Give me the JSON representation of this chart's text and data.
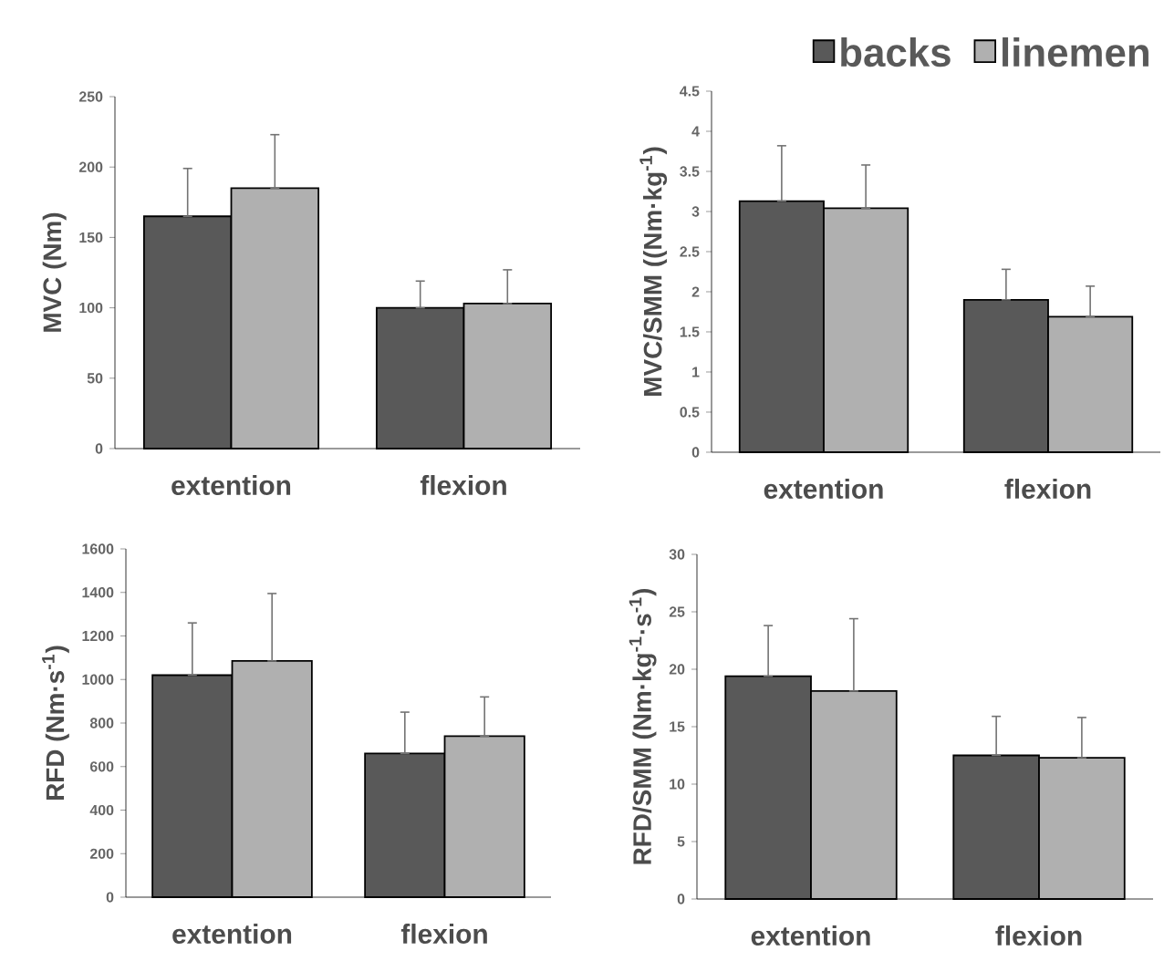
{
  "chart_data": [
    {
      "type": "bar",
      "ylabel": "MVC (Nm)",
      "categories": [
        "extention",
        "flexion"
      ],
      "ylim": [
        0,
        250
      ],
      "yticks": [
        0,
        50,
        100,
        150,
        200,
        250
      ],
      "legend": false,
      "series": [
        {
          "color": "#595959",
          "values": [
            165,
            100
          ],
          "errors": [
            [
              165,
              199
            ],
            [
              100,
              119
            ]
          ]
        },
        {
          "color": "#b0b0b0",
          "values": [
            185,
            103
          ],
          "errors": [
            [
              185,
              223
            ],
            [
              103,
              127
            ]
          ]
        }
      ]
    },
    {
      "type": "bar",
      "ylabel": "MVC/SMM ((Nm·kg$^{-1}$)",
      "categories": [
        "extention",
        "flexion"
      ],
      "ylim": [
        0,
        4.5
      ],
      "yticks": [
        0,
        0.5,
        1,
        1.5,
        2,
        2.5,
        3,
        3.5,
        4,
        4.5
      ],
      "legend": "top right",
      "series": [
        {
          "name": "backs",
          "color": "#595959",
          "values": [
            3.13,
            1.9
          ],
          "errors": [
            [
              3.13,
              3.82
            ],
            [
              1.9,
              2.28
            ]
          ]
        },
        {
          "name": "linemen",
          "color": "#b0b0b0",
          "values": [
            3.04,
            1.69
          ],
          "errors": [
            [
              3.04,
              3.58
            ],
            [
              1.69,
              2.07
            ]
          ]
        }
      ]
    },
    {
      "type": "bar",
      "ylabel": "RFD (Nm·s$^{-1}$)",
      "categories": [
        "extention",
        "flexion"
      ],
      "ylim": [
        0,
        1600
      ],
      "yticks": [
        0,
        200,
        400,
        600,
        800,
        1000,
        1200,
        1400,
        1600
      ],
      "legend": false,
      "series": [
        {
          "color": "#595959",
          "values": [
            1020,
            660
          ],
          "errors": [
            [
              1020,
              1260
            ],
            [
              660,
              850
            ]
          ]
        },
        {
          "color": "#b0b0b0",
          "values": [
            1085,
            740
          ],
          "errors": [
            [
              1085,
              1395
            ],
            [
              740,
              920
            ]
          ]
        }
      ]
    },
    {
      "type": "bar",
      "ylabel": "RFD/SMM (Nm·kg$^{-1}$·s$^{-1}$)",
      "categories": [
        "extention",
        "flexion"
      ],
      "ylim": [
        0,
        30
      ],
      "yticks": [
        0,
        5,
        10,
        15,
        20,
        25,
        30
      ],
      "legend": false,
      "series": [
        {
          "color": "#595959",
          "values": [
            19.4,
            12.5
          ],
          "errors": [
            [
              19.4,
              23.8
            ],
            [
              12.5,
              15.9
            ]
          ]
        },
        {
          "color": "#b0b0b0",
          "values": [
            18.1,
            12.3
          ],
          "errors": [
            [
              18.1,
              24.4
            ],
            [
              12.3,
              15.8
            ]
          ]
        }
      ]
    }
  ]
}
